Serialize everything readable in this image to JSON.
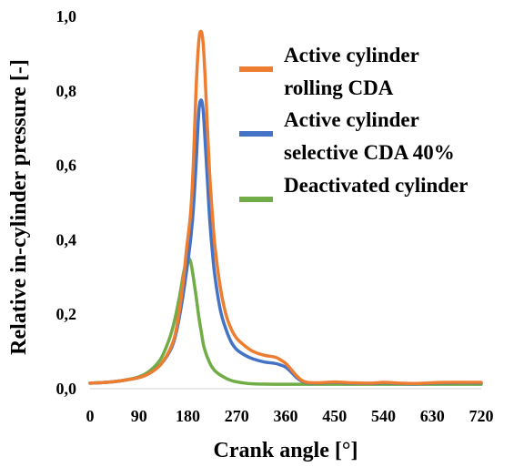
{
  "chart_data": {
    "type": "line",
    "title": "",
    "xlabel": "Crank angle [°]",
    "ylabel": "Relative in-cylinder pressure [-]",
    "xlim": [
      0,
      720
    ],
    "ylim": [
      0,
      1.0
    ],
    "x_ticks": [
      "0",
      "90",
      "180",
      "270",
      "360",
      "450",
      "540",
      "630",
      "720"
    ],
    "y_ticks": [
      "0,0",
      "0,2",
      "0,4",
      "0,6",
      "0,8",
      "1,0"
    ],
    "grid": false,
    "legend_position": "right",
    "series": [
      {
        "name_lines": [
          "Active cylinder",
          "rolling CDA"
        ],
        "color": "#ED7D31",
        "points": [
          [
            0,
            0.015
          ],
          [
            30,
            0.017
          ],
          [
            60,
            0.022
          ],
          [
            90,
            0.03
          ],
          [
            110,
            0.042
          ],
          [
            130,
            0.065
          ],
          [
            150,
            0.115
          ],
          [
            160,
            0.17
          ],
          [
            170,
            0.27
          ],
          [
            178,
            0.38
          ],
          [
            185,
            0.47
          ],
          [
            190,
            0.6
          ],
          [
            195,
            0.8
          ],
          [
            200,
            0.93
          ],
          [
            204,
            0.96
          ],
          [
            208,
            0.93
          ],
          [
            212,
            0.83
          ],
          [
            216,
            0.7
          ],
          [
            220,
            0.58
          ],
          [
            225,
            0.47
          ],
          [
            230,
            0.38
          ],
          [
            240,
            0.27
          ],
          [
            250,
            0.2
          ],
          [
            260,
            0.16
          ],
          [
            270,
            0.135
          ],
          [
            285,
            0.115
          ],
          [
            300,
            0.1
          ],
          [
            320,
            0.09
          ],
          [
            340,
            0.085
          ],
          [
            350,
            0.078
          ],
          [
            360,
            0.068
          ],
          [
            370,
            0.052
          ],
          [
            380,
            0.035
          ],
          [
            390,
            0.022
          ],
          [
            400,
            0.017
          ],
          [
            420,
            0.016
          ],
          [
            450,
            0.018
          ],
          [
            480,
            0.016
          ],
          [
            520,
            0.015
          ],
          [
            540,
            0.017
          ],
          [
            570,
            0.015
          ],
          [
            600,
            0.014
          ],
          [
            630,
            0.016
          ],
          [
            660,
            0.017
          ],
          [
            720,
            0.017
          ]
        ]
      },
      {
        "name_lines": [
          "Active cylinder",
          "selective CDA 40%"
        ],
        "color": "#4472C4",
        "points": [
          [
            0,
            0.015
          ],
          [
            30,
            0.017
          ],
          [
            60,
            0.022
          ],
          [
            90,
            0.03
          ],
          [
            110,
            0.042
          ],
          [
            130,
            0.065
          ],
          [
            150,
            0.11
          ],
          [
            160,
            0.16
          ],
          [
            170,
            0.24
          ],
          [
            178,
            0.32
          ],
          [
            185,
            0.4
          ],
          [
            190,
            0.48
          ],
          [
            195,
            0.6
          ],
          [
            200,
            0.74
          ],
          [
            204,
            0.775
          ],
          [
            208,
            0.75
          ],
          [
            212,
            0.66
          ],
          [
            216,
            0.56
          ],
          [
            220,
            0.46
          ],
          [
            225,
            0.37
          ],
          [
            230,
            0.3
          ],
          [
            240,
            0.21
          ],
          [
            250,
            0.16
          ],
          [
            260,
            0.125
          ],
          [
            270,
            0.105
          ],
          [
            285,
            0.09
          ],
          [
            300,
            0.08
          ],
          [
            320,
            0.072
          ],
          [
            340,
            0.068
          ],
          [
            350,
            0.064
          ],
          [
            360,
            0.058
          ],
          [
            370,
            0.045
          ],
          [
            380,
            0.03
          ],
          [
            390,
            0.02
          ],
          [
            400,
            0.016
          ],
          [
            420,
            0.015
          ],
          [
            450,
            0.017
          ],
          [
            480,
            0.015
          ],
          [
            520,
            0.014
          ],
          [
            540,
            0.016
          ],
          [
            570,
            0.014
          ],
          [
            600,
            0.013
          ],
          [
            630,
            0.015
          ],
          [
            660,
            0.016
          ],
          [
            720,
            0.016
          ]
        ]
      },
      {
        "name_lines": [
          "Deactivated cylinder"
        ],
        "color": "#70AD47",
        "points": [
          [
            0,
            0.015
          ],
          [
            30,
            0.017
          ],
          [
            60,
            0.022
          ],
          [
            90,
            0.032
          ],
          [
            110,
            0.048
          ],
          [
            130,
            0.08
          ],
          [
            145,
            0.13
          ],
          [
            155,
            0.18
          ],
          [
            165,
            0.25
          ],
          [
            172,
            0.31
          ],
          [
            178,
            0.345
          ],
          [
            182,
            0.35
          ],
          [
            186,
            0.335
          ],
          [
            190,
            0.3
          ],
          [
            195,
            0.25
          ],
          [
            200,
            0.195
          ],
          [
            205,
            0.15
          ],
          [
            210,
            0.11
          ],
          [
            220,
            0.07
          ],
          [
            230,
            0.048
          ],
          [
            245,
            0.032
          ],
          [
            260,
            0.022
          ],
          [
            280,
            0.016
          ],
          [
            300,
            0.013
          ],
          [
            340,
            0.012
          ],
          [
            400,
            0.012
          ],
          [
            500,
            0.012
          ],
          [
            600,
            0.012
          ],
          [
            720,
            0.012
          ]
        ]
      }
    ]
  }
}
